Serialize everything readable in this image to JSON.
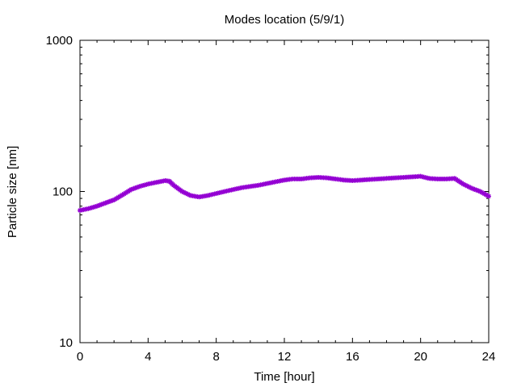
{
  "chart_data": {
    "type": "scatter",
    "title": "Modes location (5/9/1)",
    "xlabel": "Time [hour]",
    "ylabel": "Particle size [nm]",
    "xlim": [
      0,
      24
    ],
    "ylim": [
      10,
      1000
    ],
    "yscale": "log",
    "x_ticks": [
      0,
      4,
      8,
      12,
      16,
      20,
      24
    ],
    "y_ticks": [
      10,
      100,
      1000
    ],
    "grid": false,
    "legend": "none",
    "marker_color": "#9400d3",
    "marker": "star",
    "series": [
      {
        "x": [
          0,
          0.5,
          1,
          1.5,
          2,
          2.5,
          3,
          3.5,
          4,
          4.5,
          5,
          5.25,
          5.5,
          6,
          6.5,
          7,
          7.5,
          8,
          8.5,
          9,
          9.5,
          10,
          10.5,
          11,
          11.5,
          12,
          12.5,
          13,
          13.5,
          14,
          14.5,
          15,
          15.5,
          16,
          16.5,
          17,
          17.5,
          18,
          18.5,
          19,
          19.5,
          20,
          20.5,
          21,
          21.5,
          22,
          22.5,
          23,
          23.5,
          24
        ],
        "y": [
          75,
          77,
          80,
          84,
          88,
          95,
          103,
          108,
          112,
          115,
          118,
          117,
          110,
          100,
          94,
          92,
          94,
          97,
          100,
          103,
          106,
          108,
          110,
          113,
          116,
          119,
          121,
          121,
          123,
          124,
          123,
          121,
          119,
          118,
          119,
          120,
          121,
          122,
          123,
          124,
          125,
          126,
          122,
          121,
          121,
          122,
          112,
          105,
          100,
          93
        ]
      }
    ]
  }
}
